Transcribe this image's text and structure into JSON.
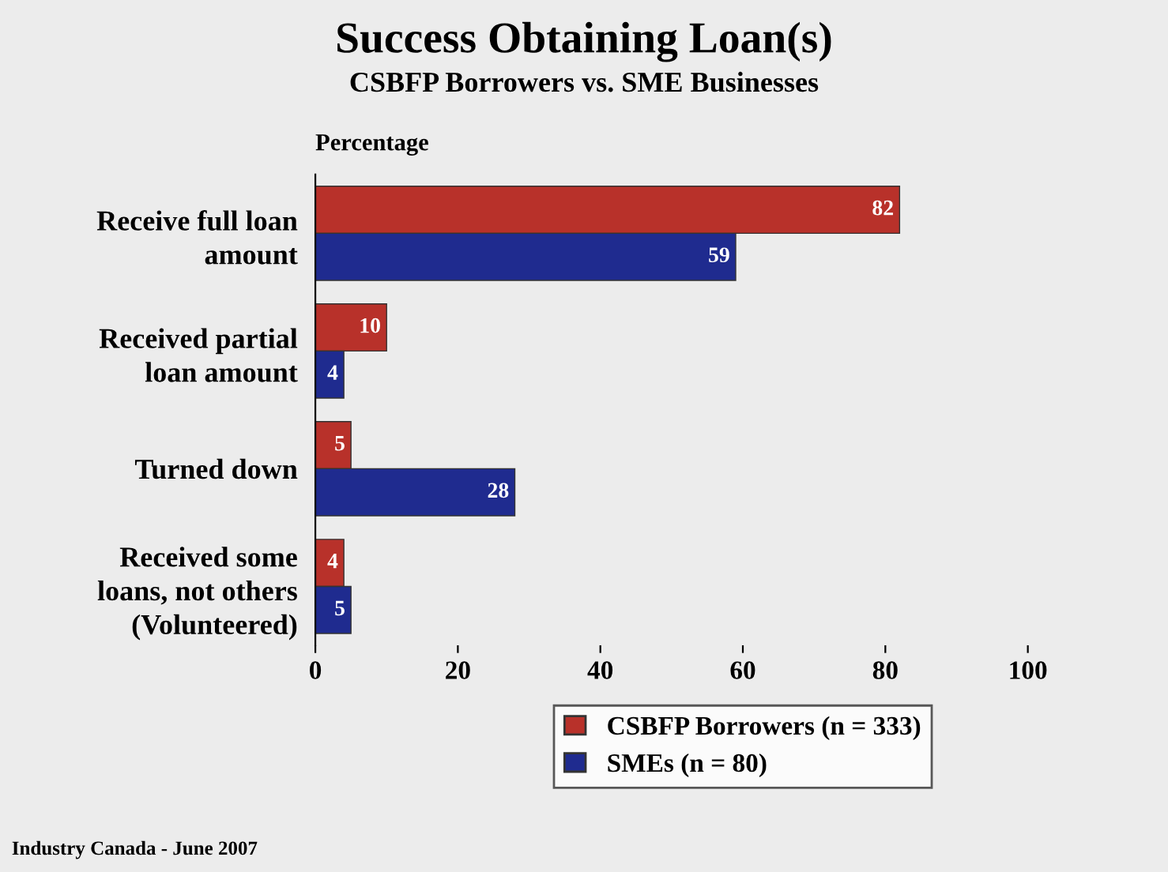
{
  "chart_data": {
    "type": "bar",
    "orientation": "horizontal",
    "title": "Success Obtaining Loan(s)",
    "subtitle": "CSBFP Borrowers vs. SME Businesses",
    "xlabel": "Percentage",
    "categories": [
      "Receive full loan\namount",
      "Received partial\nloan amount",
      "Turned down",
      "Received some\nloans, not others\n(Volunteered)"
    ],
    "series": [
      {
        "name": "CSBFP Borrowers (n = 333)",
        "color": "#b8312a",
        "values": [
          82,
          10,
          5,
          4
        ]
      },
      {
        "name": "SMEs (n = 80)",
        "color": "#1f2b8f",
        "values": [
          59,
          4,
          28,
          5
        ]
      }
    ],
    "xlim": [
      0,
      100
    ],
    "xticks": [
      0,
      20,
      40,
      60,
      80,
      100
    ],
    "data_labels": true,
    "grid": false,
    "legend": "bottom",
    "annotations": [
      "Industry Canada - June 2007"
    ]
  }
}
